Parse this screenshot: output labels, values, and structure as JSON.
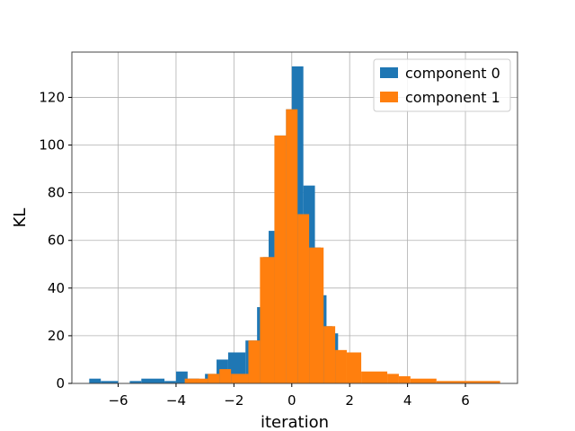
{
  "chart_data": {
    "type": "bar",
    "title": "",
    "xlabel": "iteration",
    "ylabel": "KL",
    "xlim": [
      -7.6,
      7.8
    ],
    "ylim": [
      0,
      139
    ],
    "xticks": [
      -6,
      -4,
      -2,
      0,
      2,
      4,
      6
    ],
    "xtick_labels": [
      "−6",
      "−4",
      "−2",
      "0",
      "2",
      "4",
      "6"
    ],
    "yticks": [
      0,
      20,
      40,
      60,
      80,
      100,
      120
    ],
    "ytick_labels": [
      "0",
      "20",
      "40",
      "60",
      "80",
      "100",
      "120"
    ],
    "grid": true,
    "legend_position": "top-right",
    "series": [
      {
        "name": "component 0",
        "color": "#1f77b4",
        "bins": [
          [
            -7.0,
            -6.6,
            2
          ],
          [
            -6.6,
            -6.0,
            1
          ],
          [
            -6.0,
            -5.6,
            0
          ],
          [
            -5.6,
            -5.2,
            1
          ],
          [
            -5.2,
            -4.4,
            2
          ],
          [
            -4.4,
            -4.0,
            1
          ],
          [
            -4.0,
            -3.6,
            5
          ],
          [
            -3.6,
            -3.2,
            2
          ],
          [
            -3.2,
            -3.0,
            1
          ],
          [
            -3.0,
            -2.6,
            4
          ],
          [
            -2.6,
            -2.2,
            10
          ],
          [
            -2.2,
            -1.6,
            13
          ],
          [
            -1.6,
            -1.2,
            18
          ],
          [
            -1.2,
            -1.0,
            32
          ],
          [
            -1.0,
            -0.8,
            53
          ],
          [
            -0.8,
            -0.6,
            64
          ],
          [
            -0.6,
            -0.2,
            104
          ],
          [
            -0.2,
            0.0,
            115
          ],
          [
            0.0,
            0.4,
            133
          ],
          [
            0.4,
            0.8,
            83
          ],
          [
            0.8,
            1.0,
            57
          ],
          [
            1.0,
            1.2,
            37
          ],
          [
            1.2,
            1.4,
            24
          ],
          [
            1.4,
            1.6,
            21
          ],
          [
            1.6,
            2.4,
            0
          ]
        ]
      },
      {
        "name": "component 1",
        "color": "#ff7f0e",
        "bins": [
          [
            -3.7,
            -3.3,
            2
          ],
          [
            -3.3,
            -2.9,
            2
          ],
          [
            -2.9,
            -2.5,
            4
          ],
          [
            -2.5,
            -2.1,
            6
          ],
          [
            -2.1,
            -1.5,
            4
          ],
          [
            -1.5,
            -1.1,
            18
          ],
          [
            -1.1,
            -0.6,
            53
          ],
          [
            -0.6,
            -0.2,
            104
          ],
          [
            -0.2,
            0.2,
            115
          ],
          [
            0.2,
            0.6,
            71
          ],
          [
            0.6,
            1.1,
            57
          ],
          [
            1.1,
            1.5,
            24
          ],
          [
            1.5,
            1.9,
            14
          ],
          [
            1.9,
            2.4,
            13
          ],
          [
            2.4,
            3.3,
            5
          ],
          [
            3.3,
            3.7,
            4
          ],
          [
            3.7,
            4.1,
            3
          ],
          [
            4.1,
            5.0,
            2
          ],
          [
            5.0,
            6.0,
            1
          ],
          [
            6.0,
            7.2,
            1
          ]
        ]
      }
    ]
  }
}
